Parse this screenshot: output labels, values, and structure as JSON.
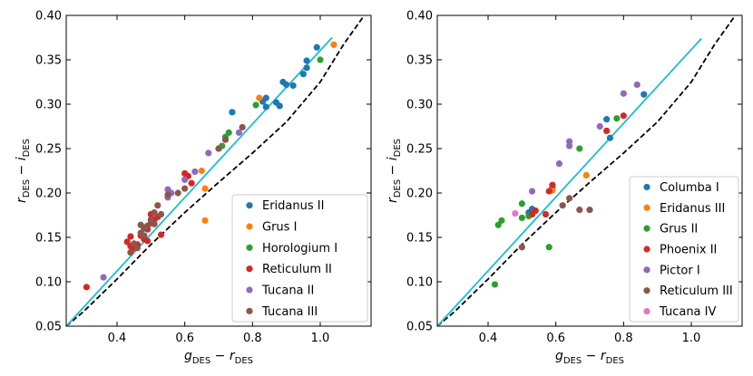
{
  "chart_data": [
    {
      "type": "scatter",
      "title": "",
      "xlabel": {
        "base": "g",
        "sub": "DES",
        "minus": "−",
        "base2": "r",
        "sub2": "DES"
      },
      "ylabel": {
        "base": "r",
        "sub": "DES",
        "minus": "−",
        "base2": "i",
        "sub2": "DES"
      },
      "xlim": [
        0.25,
        1.15
      ],
      "ylim": [
        0.05,
        0.4
      ],
      "xticks": [
        0.4,
        0.6,
        0.8,
        1.0
      ],
      "xtick_labels": [
        "0.4",
        "0.6",
        "0.8",
        "1.0"
      ],
      "yticks": [
        0.05,
        0.1,
        0.15,
        0.2,
        0.25,
        0.3,
        0.35,
        0.4
      ],
      "ytick_labels": [
        "0.05",
        "0.10",
        "0.15",
        "0.20",
        "0.25",
        "0.30",
        "0.35",
        "0.40"
      ],
      "legend_position": "lower-right",
      "fit_line": {
        "color": "#17becf",
        "points": [
          [
            0.25,
            0.05
          ],
          [
            1.035,
            0.375
          ]
        ]
      },
      "dashed_line": {
        "color": "#000000",
        "points": [
          [
            0.25,
            0.05
          ],
          [
            0.3,
            0.066
          ],
          [
            0.4,
            0.103
          ],
          [
            0.5,
            0.142
          ],
          [
            0.6,
            0.178
          ],
          [
            0.7,
            0.212
          ],
          [
            0.8,
            0.245
          ],
          [
            0.9,
            0.28
          ],
          [
            1.0,
            0.325
          ],
          [
            1.07,
            0.368
          ],
          [
            1.13,
            0.4
          ]
        ]
      },
      "series": [
        {
          "name": "Eridanus II",
          "color": "#1f77b4",
          "points": [
            [
              0.74,
              0.291
            ],
            [
              0.83,
              0.303
            ],
            [
              0.84,
              0.307
            ],
            [
              0.84,
              0.297
            ],
            [
              0.87,
              0.302
            ],
            [
              0.88,
              0.298
            ],
            [
              0.89,
              0.325
            ],
            [
              0.9,
              0.322
            ],
            [
              0.92,
              0.321
            ],
            [
              0.95,
              0.334
            ],
            [
              0.96,
              0.341
            ],
            [
              0.96,
              0.349
            ],
            [
              0.99,
              0.364
            ]
          ]
        },
        {
          "name": "Grus I",
          "color": "#ff7f0e",
          "points": [
            [
              0.65,
              0.225
            ],
            [
              0.66,
              0.205
            ],
            [
              0.66,
              0.169
            ],
            [
              0.82,
              0.307
            ],
            [
              1.04,
              0.367
            ]
          ]
        },
        {
          "name": "Horologium I",
          "color": "#2ca02c",
          "points": [
            [
              0.7,
              0.25
            ],
            [
              0.71,
              0.253
            ],
            [
              0.72,
              0.263
            ],
            [
              0.73,
              0.268
            ],
            [
              0.81,
              0.299
            ],
            [
              1.0,
              0.35
            ]
          ]
        },
        {
          "name": "Reticulum II",
          "color": "#d62728",
          "points": [
            [
              0.31,
              0.094
            ],
            [
              0.43,
              0.145
            ],
            [
              0.44,
              0.151
            ],
            [
              0.44,
              0.14
            ],
            [
              0.45,
              0.138
            ],
            [
              0.46,
              0.142
            ],
            [
              0.47,
              0.152
            ],
            [
              0.48,
              0.148
            ],
            [
              0.48,
              0.161
            ],
            [
              0.49,
              0.159
            ],
            [
              0.49,
              0.146
            ],
            [
              0.5,
              0.166
            ],
            [
              0.5,
              0.176
            ],
            [
              0.51,
              0.17
            ],
            [
              0.52,
              0.173
            ],
            [
              0.53,
              0.153
            ],
            [
              0.6,
              0.222
            ],
            [
              0.61,
              0.219
            ],
            [
              0.62,
              0.211
            ]
          ]
        },
        {
          "name": "Tucana II",
          "color": "#9467bd",
          "points": [
            [
              0.36,
              0.105
            ],
            [
              0.55,
              0.195
            ],
            [
              0.55,
              0.204
            ],
            [
              0.56,
              0.2
            ],
            [
              0.6,
              0.215
            ],
            [
              0.63,
              0.224
            ],
            [
              0.67,
              0.245
            ],
            [
              0.76,
              0.268
            ]
          ]
        },
        {
          "name": "Tucana III",
          "color": "#8c564b",
          "points": [
            [
              0.44,
              0.133
            ],
            [
              0.45,
              0.143
            ],
            [
              0.46,
              0.138
            ],
            [
              0.47,
              0.155
            ],
            [
              0.47,
              0.164
            ],
            [
              0.48,
              0.16
            ],
            [
              0.48,
              0.152
            ],
            [
              0.49,
              0.163
            ],
            [
              0.5,
              0.17
            ],
            [
              0.51,
              0.165
            ],
            [
              0.51,
              0.178
            ],
            [
              0.52,
              0.186
            ],
            [
              0.53,
              0.176
            ],
            [
              0.55,
              0.198
            ],
            [
              0.58,
              0.2
            ],
            [
              0.6,
              0.205
            ],
            [
              0.7,
              0.25
            ],
            [
              0.72,
              0.26
            ],
            [
              0.77,
              0.274
            ]
          ]
        }
      ]
    },
    {
      "type": "scatter",
      "title": "",
      "xlabel": {
        "base": "g",
        "sub": "DES",
        "minus": "−",
        "base2": "r",
        "sub2": "DES"
      },
      "ylabel": {
        "base": "r",
        "sub": "DES",
        "minus": "−",
        "base2": "i",
        "sub2": "DES"
      },
      "xlim": [
        0.25,
        1.15
      ],
      "ylim": [
        0.05,
        0.4
      ],
      "xticks": [
        0.4,
        0.6,
        0.8,
        1.0
      ],
      "xtick_labels": [
        "0.4",
        "0.6",
        "0.8",
        "1.0"
      ],
      "yticks": [
        0.05,
        0.1,
        0.15,
        0.2,
        0.25,
        0.3,
        0.35,
        0.4
      ],
      "ytick_labels": [
        "0.05",
        "0.10",
        "0.15",
        "0.20",
        "0.25",
        "0.30",
        "0.35",
        "0.40"
      ],
      "legend_position": "lower-right",
      "fit_line": {
        "color": "#17becf",
        "points": [
          [
            0.25,
            0.05
          ],
          [
            1.03,
            0.374
          ]
        ]
      },
      "dashed_line": {
        "color": "#000000",
        "points": [
          [
            0.25,
            0.05
          ],
          [
            0.3,
            0.066
          ],
          [
            0.4,
            0.103
          ],
          [
            0.5,
            0.142
          ],
          [
            0.6,
            0.178
          ],
          [
            0.7,
            0.212
          ],
          [
            0.8,
            0.245
          ],
          [
            0.9,
            0.28
          ],
          [
            1.0,
            0.325
          ],
          [
            1.07,
            0.368
          ],
          [
            1.13,
            0.4
          ]
        ]
      },
      "series": [
        {
          "name": "Columba I",
          "color": "#1f77b4",
          "points": [
            [
              0.52,
              0.178
            ],
            [
              0.53,
              0.182
            ],
            [
              0.59,
              0.206
            ],
            [
              0.75,
              0.283
            ],
            [
              0.76,
              0.262
            ],
            [
              0.86,
              0.311
            ]
          ]
        },
        {
          "name": "Eridanus III",
          "color": "#ff7f0e",
          "points": [
            [
              0.59,
              0.203
            ],
            [
              0.69,
              0.22
            ]
          ]
        },
        {
          "name": "Grus II",
          "color": "#2ca02c",
          "points": [
            [
              0.42,
              0.097
            ],
            [
              0.43,
              0.164
            ],
            [
              0.44,
              0.169
            ],
            [
              0.5,
              0.172
            ],
            [
              0.5,
              0.188
            ],
            [
              0.52,
              0.174
            ],
            [
              0.58,
              0.139
            ],
            [
              0.67,
              0.25
            ],
            [
              0.78,
              0.284
            ]
          ]
        },
        {
          "name": "Phoenix II",
          "color": "#d62728",
          "points": [
            [
              0.53,
              0.176
            ],
            [
              0.54,
              0.18
            ],
            [
              0.57,
              0.176
            ],
            [
              0.58,
              0.202
            ],
            [
              0.59,
              0.209
            ],
            [
              0.75,
              0.27
            ],
            [
              0.8,
              0.287
            ]
          ]
        },
        {
          "name": "Pictor I",
          "color": "#9467bd",
          "points": [
            [
              0.53,
              0.202
            ],
            [
              0.61,
              0.233
            ],
            [
              0.64,
              0.253
            ],
            [
              0.64,
              0.258
            ],
            [
              0.73,
              0.275
            ],
            [
              0.8,
              0.312
            ],
            [
              0.84,
              0.322
            ]
          ]
        },
        {
          "name": "Reticulum III",
          "color": "#8c564b",
          "points": [
            [
              0.5,
              0.139
            ],
            [
              0.62,
              0.186
            ],
            [
              0.64,
              0.194
            ],
            [
              0.67,
              0.181
            ],
            [
              0.7,
              0.181
            ]
          ]
        },
        {
          "name": "Tucana IV",
          "color": "#e377c2",
          "points": [
            [
              0.48,
              0.177
            ]
          ]
        }
      ]
    }
  ]
}
